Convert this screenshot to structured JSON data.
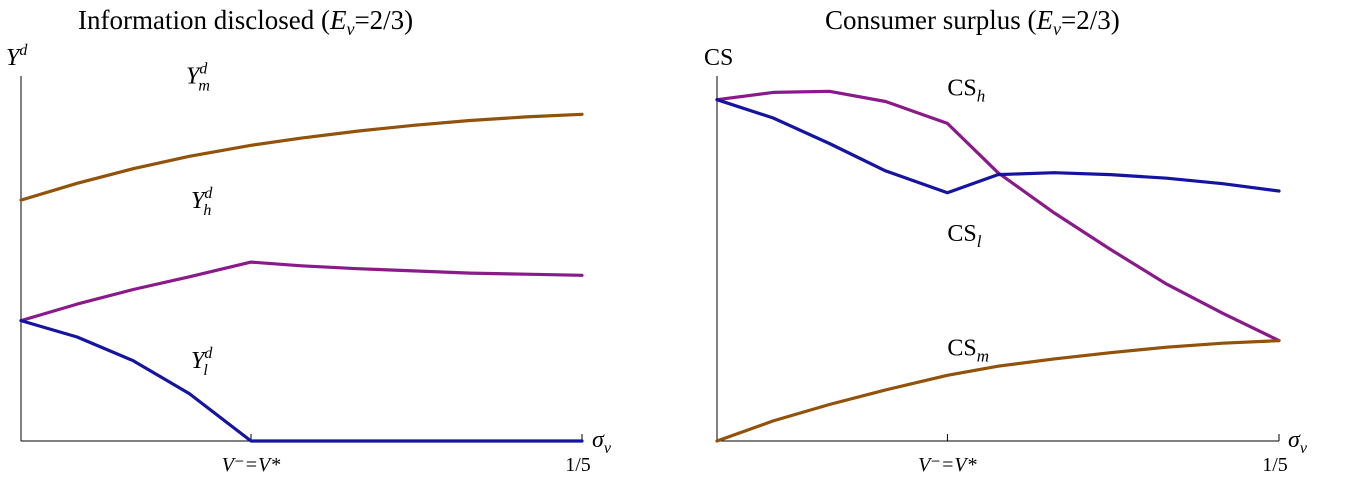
{
  "colors": {
    "brown": "#93520a",
    "purple": "#8a1a8a",
    "blue": "#1414a0"
  },
  "chart_data": [
    {
      "type": "line",
      "title_main": "Information disclosed (",
      "title_sym": "E",
      "title_sub": "v",
      "title_tail": "=2/3)",
      "ylabel": "Y",
      "ylabel_sup": "d",
      "xlabel": "σ",
      "xlabel_sub": "v",
      "xlim": [
        0,
        1
      ],
      "ylim": [
        0,
        1
      ],
      "xticks": [
        {
          "x": 0.41,
          "label": "V⁻=V*"
        },
        {
          "x": 1.0,
          "label": "1/5"
        }
      ],
      "series": [
        {
          "name": "m",
          "color_key": "brown",
          "label_base": "Y",
          "label_sup": "d",
          "label_sub": "m",
          "x": [
            0,
            0.1,
            0.2,
            0.3,
            0.41,
            0.5,
            0.6,
            0.7,
            0.8,
            0.9,
            1.0
          ],
          "y": [
            0.66,
            0.706,
            0.746,
            0.78,
            0.81,
            0.83,
            0.849,
            0.865,
            0.878,
            0.888,
            0.895
          ]
        },
        {
          "name": "h",
          "color_key": "purple",
          "label_base": "Y",
          "label_sup": "d",
          "label_sub": "h",
          "x": [
            0,
            0.1,
            0.2,
            0.3,
            0.41,
            0.5,
            0.6,
            0.7,
            0.8,
            0.9,
            1.0
          ],
          "y": [
            0.33,
            0.375,
            0.415,
            0.45,
            0.49,
            0.48,
            0.472,
            0.466,
            0.46,
            0.457,
            0.454
          ]
        },
        {
          "name": "l",
          "color_key": "blue",
          "label_base": "Y",
          "label_sup": "d",
          "label_sub": "l",
          "x": [
            0,
            0.1,
            0.2,
            0.3,
            0.41,
            0.5,
            0.6,
            0.7,
            0.8,
            0.9,
            1.0
          ],
          "y": [
            0.33,
            0.285,
            0.22,
            0.13,
            0.0,
            0.0,
            0.0,
            0.0,
            0.0,
            0.0,
            0.0
          ]
        }
      ]
    },
    {
      "type": "line",
      "title_main": "Consumer surplus (",
      "title_sym": "E",
      "title_sub": "v",
      "title_tail": "=2/3)",
      "ylabel": "CS",
      "ylabel_sup": "",
      "xlabel": "σ",
      "xlabel_sub": "v",
      "xlim": [
        0,
        1
      ],
      "ylim": [
        0,
        1
      ],
      "xticks": [
        {
          "x": 0.41,
          "label": "V⁻=V*"
        },
        {
          "x": 1.0,
          "label": "1/5"
        }
      ],
      "series": [
        {
          "name": "h",
          "color_key": "purple",
          "label_base": "CS",
          "label_sup": "",
          "label_sub": "h",
          "x": [
            0,
            0.1,
            0.2,
            0.3,
            0.41,
            0.5,
            0.6,
            0.7,
            0.8,
            0.9,
            1.0
          ],
          "y": [
            0.935,
            0.955,
            0.958,
            0.93,
            0.87,
            0.735,
            0.625,
            0.525,
            0.43,
            0.35,
            0.275
          ]
        },
        {
          "name": "l",
          "color_key": "blue",
          "label_base": "CS",
          "label_sup": "",
          "label_sub": "l",
          "x": [
            0,
            0.1,
            0.2,
            0.3,
            0.41,
            0.5,
            0.6,
            0.7,
            0.8,
            0.9,
            1.0
          ],
          "y": [
            0.935,
            0.885,
            0.815,
            0.74,
            0.68,
            0.73,
            0.735,
            0.73,
            0.72,
            0.705,
            0.685
          ]
        },
        {
          "name": "m",
          "color_key": "brown",
          "label_base": "CS",
          "label_sup": "",
          "label_sub": "m",
          "x": [
            0,
            0.1,
            0.2,
            0.3,
            0.41,
            0.5,
            0.6,
            0.7,
            0.8,
            0.9,
            1.0
          ],
          "y": [
            0.0,
            0.055,
            0.1,
            0.14,
            0.18,
            0.205,
            0.225,
            0.242,
            0.257,
            0.268,
            0.275
          ]
        }
      ]
    }
  ]
}
